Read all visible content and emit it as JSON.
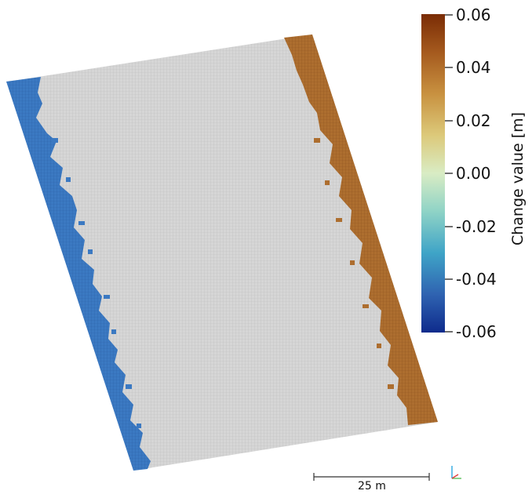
{
  "colorbar": {
    "title": "Change value [m]",
    "ticks": [
      "0.06",
      "0.04",
      "0.02",
      "0.00",
      "-0.02",
      "-0.04",
      "-0.06"
    ],
    "min": -0.06,
    "max": 0.06
  },
  "scale_bar": {
    "label": "25 m"
  },
  "colors": {
    "neutral_points": "#c8c8c8",
    "negative_points": "#3a78c0",
    "positive_points": "#a86a2e"
  },
  "icons": {
    "axes": "axes-triad-icon"
  }
}
